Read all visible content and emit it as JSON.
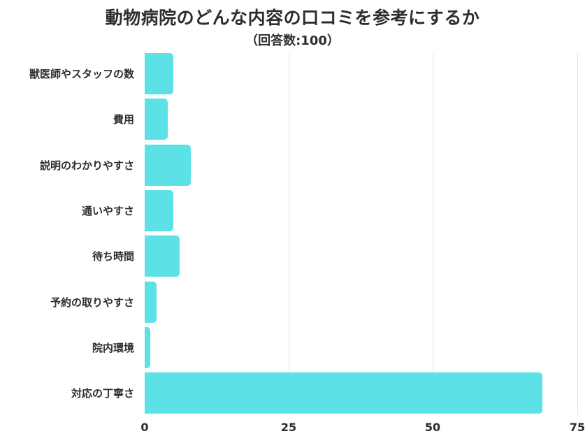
{
  "chart_data": {
    "type": "bar",
    "orientation": "horizontal",
    "title": "動物病院のどんな内容の口コミを参考にするか",
    "subtitle": "（回答数:100）",
    "categories": [
      "獣医師やスタッフの数",
      "費用",
      "説明のわかりやすさ",
      "通いやすさ",
      "待ち時間",
      "予約の取りやすさ",
      "院内環境",
      "対応の丁寧さ"
    ],
    "values": [
      5,
      4,
      8,
      5,
      6,
      2,
      1,
      69
    ],
    "xlabel": "",
    "ylabel": "",
    "xlim": [
      0,
      75
    ],
    "xticks": [
      "0",
      "25",
      "50",
      "75"
    ],
    "grid": true,
    "legend": null,
    "bar_color": "#5ce1e6"
  }
}
